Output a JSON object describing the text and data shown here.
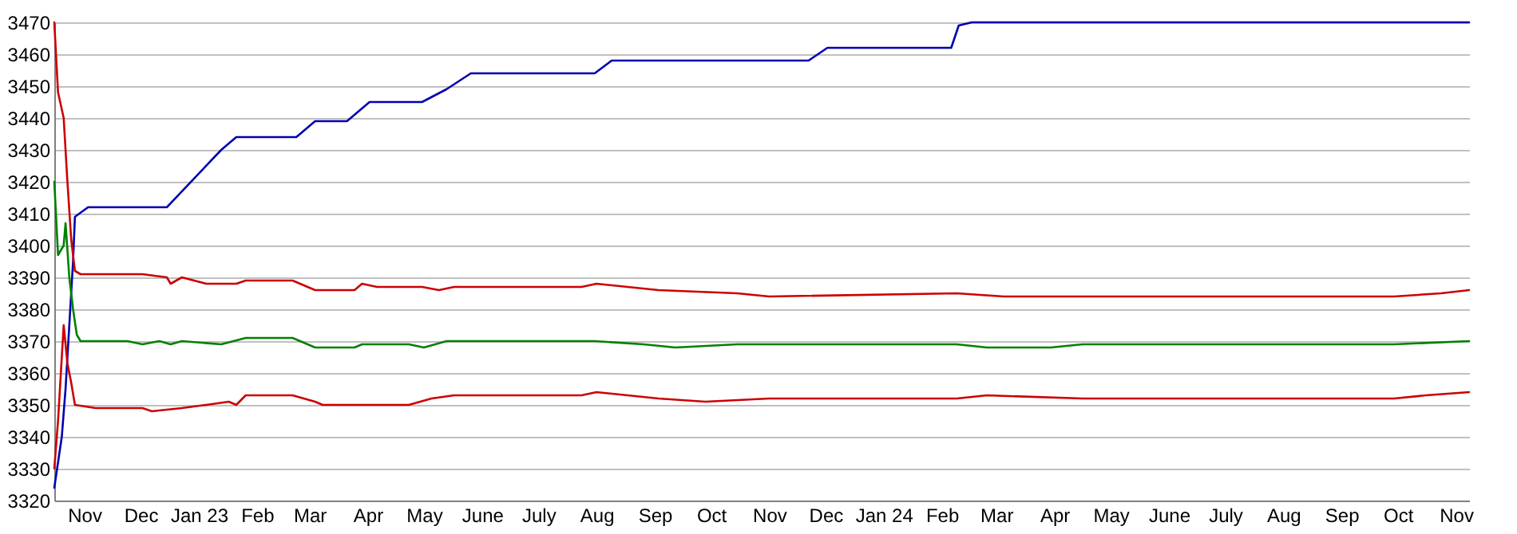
{
  "chart_data": {
    "type": "line",
    "xlim": [
      "2022-10-16",
      "2024-11-08"
    ],
    "ylim": [
      3320,
      3470
    ],
    "yticks": [
      3320,
      3330,
      3340,
      3350,
      3360,
      3370,
      3380,
      3390,
      3400,
      3410,
      3420,
      3430,
      3440,
      3450,
      3460,
      3470
    ],
    "xticks": [
      {
        "value": "2022-11-01",
        "label": "Nov"
      },
      {
        "value": "2022-12-01",
        "label": "Dec"
      },
      {
        "value": "2023-01-01",
        "label": "Jan 23"
      },
      {
        "value": "2023-02-01",
        "label": "Feb"
      },
      {
        "value": "2023-03-01",
        "label": "Mar"
      },
      {
        "value": "2023-04-01",
        "label": "Apr"
      },
      {
        "value": "2023-05-01",
        "label": "May"
      },
      {
        "value": "2023-06-01",
        "label": "June"
      },
      {
        "value": "2023-07-01",
        "label": "July"
      },
      {
        "value": "2023-08-01",
        "label": "Aug"
      },
      {
        "value": "2023-09-01",
        "label": "Sep"
      },
      {
        "value": "2023-10-01",
        "label": "Oct"
      },
      {
        "value": "2023-11-01",
        "label": "Nov"
      },
      {
        "value": "2023-12-01",
        "label": "Dec"
      },
      {
        "value": "2024-01-01",
        "label": "Jan 24"
      },
      {
        "value": "2024-02-01",
        "label": "Feb"
      },
      {
        "value": "2024-03-01",
        "label": "Mar"
      },
      {
        "value": "2024-04-01",
        "label": "Apr"
      },
      {
        "value": "2024-05-01",
        "label": "May"
      },
      {
        "value": "2024-06-01",
        "label": "June"
      },
      {
        "value": "2024-07-01",
        "label": "July"
      },
      {
        "value": "2024-08-01",
        "label": "Aug"
      },
      {
        "value": "2024-09-01",
        "label": "Sep"
      },
      {
        "value": "2024-10-01",
        "label": "Oct"
      },
      {
        "value": "2024-11-01",
        "label": "Nov"
      }
    ],
    "grid": "y",
    "line_style": "solid",
    "series": [
      {
        "color": "#0000b0",
        "x": [
          "2022-10-16",
          "2022-10-20",
          "2022-10-22",
          "2022-10-24",
          "2022-10-26",
          "2022-10-27",
          "2022-11-03",
          "2022-12-15",
          "2023-01-13",
          "2023-01-21",
          "2023-02-22",
          "2023-03-04",
          "2023-03-21",
          "2023-04-02",
          "2023-04-30",
          "2023-05-13",
          "2023-05-26",
          "2023-07-31",
          "2023-08-09",
          "2023-11-22",
          "2023-12-02",
          "2024-02-06",
          "2024-02-10",
          "2024-02-17",
          "2024-11-08"
        ],
        "values": [
          3324,
          3340,
          3355,
          3375,
          3395,
          3409,
          3412,
          3412,
          3430,
          3434,
          3434,
          3439,
          3439,
          3445,
          3445,
          3449,
          3454,
          3454,
          3458,
          3458,
          3462,
          3462,
          3469,
          3470,
          3470
        ]
      },
      {
        "color": "#cc0000",
        "x": [
          "2022-10-16",
          "2022-10-18",
          "2022-10-21",
          "2022-10-23",
          "2022-10-25",
          "2022-10-27",
          "2022-10-30",
          "2022-12-02",
          "2022-12-15",
          "2022-12-17",
          "2022-12-23",
          "2023-01-05",
          "2023-01-21",
          "2023-01-26",
          "2023-02-20",
          "2023-03-04",
          "2023-03-25",
          "2023-03-29",
          "2023-04-06",
          "2023-04-30",
          "2023-05-09",
          "2023-05-17",
          "2023-07-24",
          "2023-08-01",
          "2023-09-03",
          "2023-10-15",
          "2023-11-01",
          "2024-02-09",
          "2024-03-05",
          "2024-09-29",
          "2024-10-24",
          "2024-11-08"
        ],
        "values": [
          3470,
          3448,
          3440,
          3420,
          3402,
          3392,
          3391,
          3391,
          3390,
          3388,
          3390,
          3388,
          3388,
          3389,
          3389,
          3386,
          3386,
          3388,
          3387,
          3387,
          3386,
          3387,
          3387,
          3388,
          3386,
          3385,
          3384,
          3385,
          3384,
          3384,
          3385,
          3386
        ]
      },
      {
        "color": "#008000",
        "x": [
          "2022-10-16",
          "2022-10-18",
          "2022-10-21",
          "2022-10-22",
          "2022-10-24",
          "2022-10-26",
          "2022-10-28",
          "2022-10-30",
          "2022-11-24",
          "2022-12-02",
          "2022-12-11",
          "2022-12-17",
          "2022-12-23",
          "2023-01-13",
          "2023-01-26",
          "2023-02-20",
          "2023-02-24",
          "2023-03-04",
          "2023-03-25",
          "2023-03-29",
          "2023-04-23",
          "2023-05-01",
          "2023-05-13",
          "2023-07-31",
          "2023-08-26",
          "2023-09-12",
          "2023-10-15",
          "2024-02-09",
          "2024-02-25",
          "2024-03-30",
          "2024-04-16",
          "2024-09-29",
          "2024-11-08"
        ],
        "values": [
          3420,
          3397,
          3400,
          3407,
          3390,
          3380,
          3372,
          3370,
          3370,
          3369,
          3370,
          3369,
          3370,
          3369,
          3371,
          3371,
          3370,
          3368,
          3368,
          3369,
          3369,
          3368,
          3370,
          3370,
          3369,
          3368,
          3369,
          3369,
          3368,
          3368,
          3369,
          3369,
          3370
        ]
      },
      {
        "color": "#cc0000",
        "x": [
          "2022-10-16",
          "2022-10-18",
          "2022-10-21",
          "2022-10-23",
          "2022-10-25",
          "2022-10-27",
          "2022-11-07",
          "2022-12-02",
          "2022-12-07",
          "2022-12-23",
          "2023-01-05",
          "2023-01-17",
          "2023-01-21",
          "2023-01-26",
          "2023-02-20",
          "2023-03-04",
          "2023-03-08",
          "2023-04-23",
          "2023-05-05",
          "2023-05-17",
          "2023-07-24",
          "2023-08-01",
          "2023-09-03",
          "2023-09-28",
          "2023-11-01",
          "2024-02-09",
          "2024-02-25",
          "2024-04-16",
          "2024-09-29",
          "2024-10-16",
          "2024-11-08"
        ],
        "values": [
          3330,
          3345,
          3375,
          3363,
          3357,
          3350,
          3349,
          3349,
          3348,
          3349,
          3350,
          3351,
          3350,
          3353,
          3353,
          3351,
          3350,
          3350,
          3352,
          3353,
          3353,
          3354,
          3352,
          3351,
          3352,
          3352,
          3353,
          3352,
          3352,
          3353,
          3354
        ]
      }
    ]
  }
}
